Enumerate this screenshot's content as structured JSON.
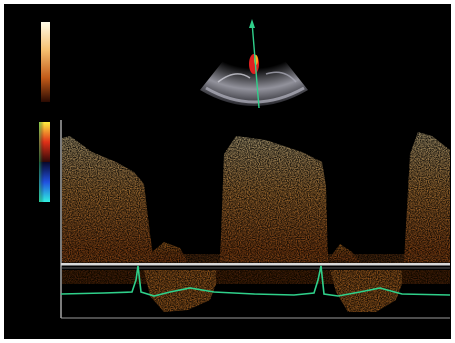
{
  "image": {
    "kind": "doppler-ultrasound-spectrogram",
    "background_color": "#000000",
    "border_color": "#ffffff"
  },
  "palette": {
    "spectral_bright": "#fff2c0",
    "spectral_mid": "#f0a040",
    "spectral_dark": "#b04a10",
    "ecg_trace": "#2fd08a",
    "baseline": "#d8d8d8",
    "sector_tint": "#c8c8d0",
    "color_flow": "#e02020",
    "cursor_line": "#2fd08a"
  },
  "legend": {
    "grayscale_bar_icon": "gray-orange-gradient-bar",
    "color_flow_bar_icon": "red-blue-velocity-bar"
  },
  "icons": {
    "sector": "ultrasound-sector",
    "cursor": "doppler-cursor",
    "ecg": "ecg-trace"
  }
}
